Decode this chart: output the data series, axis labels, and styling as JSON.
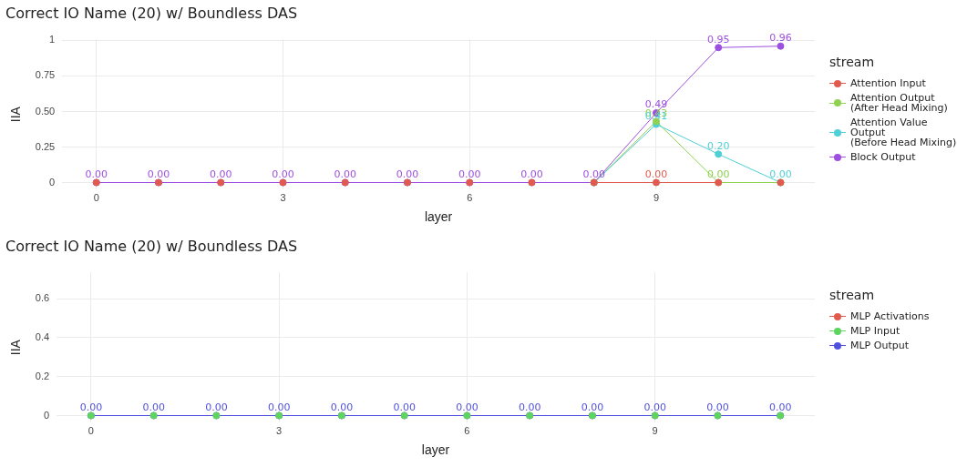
{
  "chart_data": [
    {
      "type": "line",
      "title": "Correct IO Name (20) w/ Boundless DAS",
      "xlabel": "layer",
      "ylabel": "IIA",
      "legend_title": "stream",
      "x": [
        0,
        1,
        2,
        3,
        4,
        5,
        6,
        7,
        8,
        9,
        10,
        11
      ],
      "series": [
        {
          "name": "Attention Input",
          "color": "#e05a4f",
          "values": [
            0,
            0,
            0,
            0,
            0,
            0,
            0,
            0,
            0,
            0,
            0,
            0
          ],
          "value_labels": [
            null,
            null,
            null,
            null,
            null,
            null,
            null,
            null,
            null,
            "0.00",
            null,
            null
          ]
        },
        {
          "name": "Attention Output\n(After Head Mixing)",
          "color": "#8fd150",
          "values": [
            null,
            null,
            null,
            null,
            null,
            null,
            null,
            null,
            0,
            0.43,
            0,
            0
          ],
          "value_labels": [
            null,
            null,
            null,
            null,
            null,
            null,
            null,
            null,
            null,
            "0.43",
            "0.00",
            null
          ]
        },
        {
          "name": "Attention Value Output\n(Before Head Mixing)",
          "color": "#4fcfd6",
          "values": [
            null,
            null,
            null,
            null,
            null,
            null,
            null,
            null,
            0,
            0.41,
            0.2,
            0
          ],
          "value_labels": [
            null,
            null,
            null,
            null,
            null,
            null,
            null,
            null,
            null,
            "0.41",
            "0.20",
            "0.00"
          ]
        },
        {
          "name": "Block Output",
          "color": "#9d4fe0",
          "values": [
            0,
            0,
            0,
            0,
            0,
            0,
            0,
            0,
            0,
            0.49,
            0.95,
            0.96
          ],
          "value_labels": [
            "0.00",
            "0.00",
            "0.00",
            "0.00",
            "0.00",
            "0.00",
            "0.00",
            "0.00",
            "0.00",
            "0.49",
            "0.95",
            "0.96"
          ]
        }
      ],
      "xlim": [
        -0.55,
        11.55
      ],
      "xticks": [
        0,
        3,
        6,
        9
      ],
      "ylim": [
        -0.048,
        1.008
      ],
      "yticks": [
        0,
        0.25,
        {
          "value": 0.5,
          "label": "0.50"
        },
        0.75,
        1
      ],
      "grid": true,
      "legend": "right",
      "marker": "circle",
      "line_style": "solid"
    },
    {
      "type": "line",
      "title": "Correct IO Name (20) w/ Boundless DAS",
      "xlabel": "layer",
      "ylabel": "IIA",
      "legend_title": "stream",
      "x": [
        0,
        1,
        2,
        3,
        4,
        5,
        6,
        7,
        8,
        9,
        10,
        11
      ],
      "series": [
        {
          "name": "MLP Activations",
          "color": "#e05a4f",
          "values": [
            null,
            null,
            null,
            null,
            null,
            null,
            null,
            null,
            null,
            null,
            null,
            null
          ]
        },
        {
          "name": "MLP Input",
          "type": "scatter",
          "color": "#5fd45f",
          "values": [
            0,
            0,
            0,
            0,
            0,
            0,
            0,
            0,
            0,
            0,
            0,
            0
          ]
        },
        {
          "name": "MLP Output",
          "color": "#5050e0",
          "values": [
            0,
            0,
            0,
            0,
            0,
            0,
            0,
            0,
            0,
            0,
            0,
            0
          ],
          "value_labels": [
            "0.00",
            "0.00",
            "0.00",
            "0.00",
            "0.00",
            "0.00",
            "0.00",
            "0.00",
            "0.00",
            "0.00",
            "0.00",
            "0.00"
          ]
        }
      ],
      "xlim": [
        -0.55,
        11.55
      ],
      "xticks": [
        0,
        3,
        6,
        9
      ],
      "ylim": [
        -0.035,
        0.735
      ],
      "yticks": [
        0,
        0.2,
        0.4,
        0.6
      ],
      "grid": true,
      "legend": "right",
      "marker": "circle",
      "line_style": "solid"
    }
  ]
}
